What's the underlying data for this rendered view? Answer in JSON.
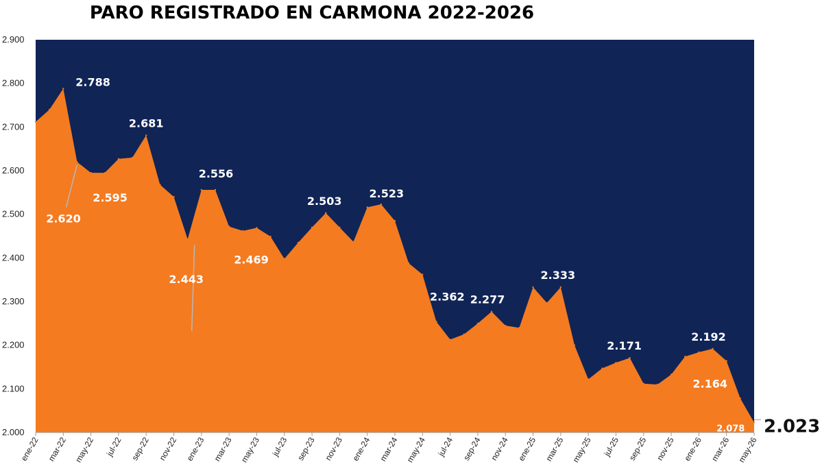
{
  "chart_data": {
    "type": "area",
    "title": "PARO REGISTRADO EN CARMONA 2022-2026",
    "xlabel": "",
    "ylabel": "",
    "ylim": [
      2000,
      2900
    ],
    "yticks": [
      "2.000",
      "2.100",
      "2.200",
      "2.300",
      "2.400",
      "2.500",
      "2.600",
      "2.700",
      "2.800",
      "2.900"
    ],
    "ytick_values": [
      2000,
      2100,
      2200,
      2300,
      2400,
      2500,
      2600,
      2700,
      2800,
      2900
    ],
    "xticks": [
      "ene-22",
      "mar-22",
      "may-22",
      "jul-22",
      "sep-22",
      "nov-22",
      "ene-23",
      "mar-23",
      "may-23",
      "jul-23",
      "sep-23",
      "nov-23",
      "ene-24",
      "mar-24",
      "may-24",
      "jul-24",
      "sep-24",
      "nov-24",
      "ene-25",
      "mar-25",
      "may-25",
      "jul-25",
      "sep-25",
      "nov-25",
      "ene-26",
      "mar-26",
      "may-26"
    ],
    "categories": [
      "ene-22",
      "feb-22",
      "mar-22",
      "abr-22",
      "may-22",
      "jun-22",
      "jul-22",
      "ago-22",
      "sep-22",
      "oct-22",
      "nov-22",
      "dic-22",
      "ene-23",
      "feb-23",
      "mar-23",
      "abr-23",
      "may-23",
      "jun-23",
      "jul-23",
      "ago-23",
      "sep-23",
      "oct-23",
      "nov-23",
      "dic-23",
      "ene-24",
      "feb-24",
      "mar-24",
      "abr-24",
      "may-24",
      "jun-24",
      "jul-24",
      "ago-24",
      "sep-24",
      "oct-24",
      "nov-24",
      "dic-24",
      "ene-25",
      "feb-25",
      "mar-25",
      "abr-25",
      "may-25",
      "jun-25",
      "jul-25",
      "ago-25",
      "sep-25",
      "oct-25",
      "nov-25",
      "dic-25",
      "ene-26",
      "feb-26",
      "mar-26",
      "abr-26",
      "may-26"
    ],
    "values": [
      2712,
      2740,
      2788,
      2620,
      2595,
      2595,
      2627,
      2630,
      2681,
      2568,
      2540,
      2443,
      2556,
      2556,
      2472,
      2462,
      2469,
      2449,
      2398,
      2435,
      2470,
      2503,
      2470,
      2437,
      2516,
      2523,
      2485,
      2388,
      2362,
      2254,
      2213,
      2225,
      2250,
      2277,
      2245,
      2240,
      2333,
      2297,
      2333,
      2200,
      2122,
      2147,
      2160,
      2171,
      2112,
      2110,
      2133,
      2174,
      2184,
      2192,
      2164,
      2078,
      2023
    ],
    "data_labels": [
      {
        "category": "mar-22",
        "text": "2.788"
      },
      {
        "category": "abr-22",
        "text": "2.620"
      },
      {
        "category": "may-22",
        "text": "2.595"
      },
      {
        "category": "sep-22",
        "text": "2.681"
      },
      {
        "category": "dic-22",
        "text": "2.443"
      },
      {
        "category": "feb-23",
        "text": "2.556"
      },
      {
        "category": "may-23",
        "text": "2.469"
      },
      {
        "category": "oct-23",
        "text": "2.503"
      },
      {
        "category": "feb-24",
        "text": "2.523"
      },
      {
        "category": "may-24",
        "text": "2.362"
      },
      {
        "category": "oct-24",
        "text": "2.277"
      },
      {
        "category": "mar-25",
        "text": "2.333"
      },
      {
        "category": "ago-25",
        "text": "2.171"
      },
      {
        "category": "feb-26",
        "text": "2.192"
      },
      {
        "category": "mar-26",
        "text": "2.164"
      },
      {
        "category": "abr-26",
        "text": "2.078"
      },
      {
        "category": "may-26",
        "text": "2.023"
      }
    ],
    "grid": false,
    "colors": {
      "area": "#F47B20",
      "background": "#102456"
    }
  }
}
